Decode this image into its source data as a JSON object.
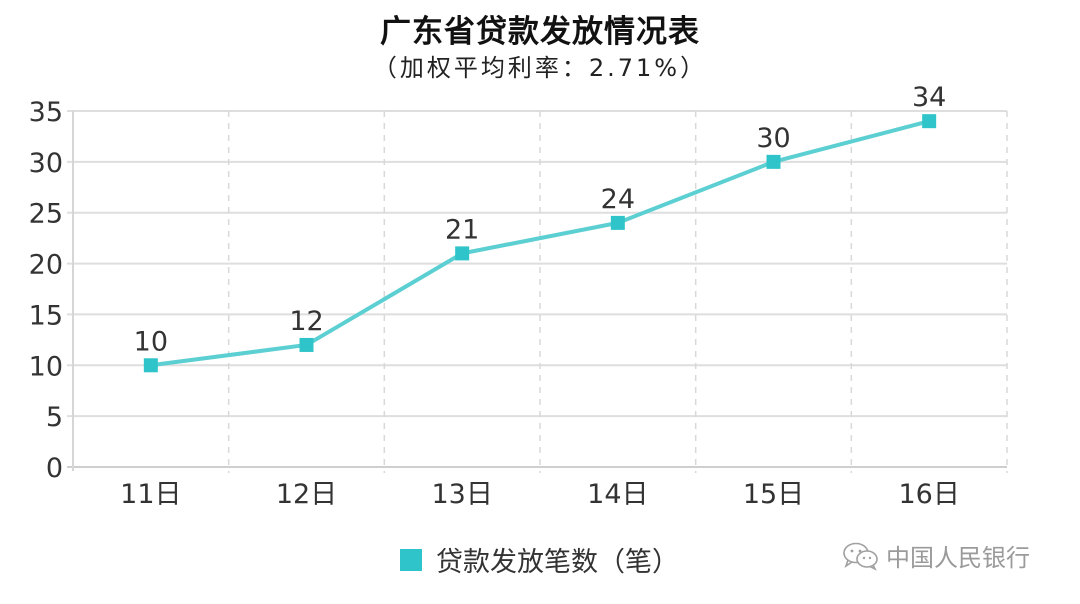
{
  "header": {
    "title": "广东省贷款发放情况表",
    "subtitle": "（加权平均利率：2.71%）"
  },
  "legend": {
    "label": "贷款发放笔数（笔）",
    "color": "#2ec4c9"
  },
  "watermark": {
    "icon": "wechat-icon",
    "text": "中国人民银行"
  },
  "colors": {
    "series": "#2ec4c9",
    "line": "#5ccfd2",
    "grid": "#dedede",
    "axis_text": "#333333"
  },
  "chart_data": {
    "type": "line",
    "title": "广东省贷款发放情况表",
    "subtitle": "（加权平均利率：2.71%）",
    "categories": [
      "11日",
      "12日",
      "13日",
      "14日",
      "15日",
      "16日"
    ],
    "series": [
      {
        "name": "贷款发放笔数（笔）",
        "values": [
          10,
          12,
          21,
          24,
          30,
          34
        ],
        "marker": "square"
      }
    ],
    "data_labels": [
      "10",
      "12",
      "21",
      "24",
      "30",
      "34"
    ],
    "y_ticks": [
      "0",
      "5",
      "10",
      "15",
      "20",
      "25",
      "30",
      "35"
    ],
    "xlabel": "",
    "ylabel": "",
    "ylim": [
      0,
      35
    ],
    "grid": {
      "horizontal": "solid",
      "vertical": "dashed"
    },
    "legend_position": "bottom"
  }
}
